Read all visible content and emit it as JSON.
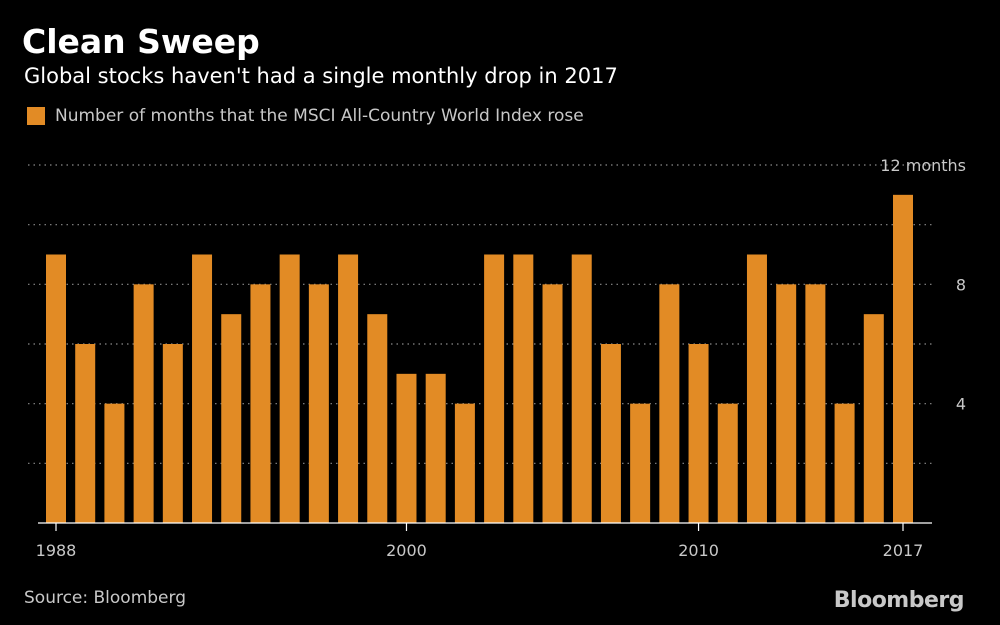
{
  "title": "Clean Sweep",
  "subtitle": "Global stocks haven't had a single monthly drop in 2017",
  "source": "Source: Bloomberg",
  "brand": "Bloomberg",
  "colors": {
    "bar": "#e28b25",
    "background": "#000000",
    "text": "#c8c8c8"
  },
  "chart_data": {
    "type": "bar",
    "title": "Clean Sweep",
    "subtitle": "Global stocks haven't had a single monthly drop in 2017",
    "legend": "Number of months that the MSCI All-Country World Index rose",
    "categories": [
      1988,
      1989,
      1990,
      1991,
      1992,
      1993,
      1994,
      1995,
      1996,
      1997,
      1998,
      1999,
      2000,
      2001,
      2002,
      2003,
      2004,
      2005,
      2006,
      2007,
      2008,
      2009,
      2010,
      2011,
      2012,
      2013,
      2014,
      2015,
      2016,
      2017
    ],
    "values": [
      9,
      6,
      4,
      8,
      6,
      9,
      7,
      8,
      9,
      8,
      9,
      7,
      5,
      5,
      4,
      9,
      9,
      8,
      9,
      6,
      4,
      8,
      6,
      4,
      9,
      8,
      8,
      4,
      7,
      11
    ],
    "ylim": [
      0,
      12
    ],
    "y_gridlines": [
      2,
      4,
      6,
      8,
      10,
      12
    ],
    "y_tick_labels": [
      {
        "value": 4,
        "label": "4"
      },
      {
        "value": 8,
        "label": "8"
      },
      {
        "value": 12,
        "label": "12 months"
      }
    ],
    "x_tick_labels": [
      "1988",
      "2000",
      "2010",
      "2017"
    ],
    "y_axis_side": "right",
    "grid": true,
    "grid_style": "dotted"
  }
}
